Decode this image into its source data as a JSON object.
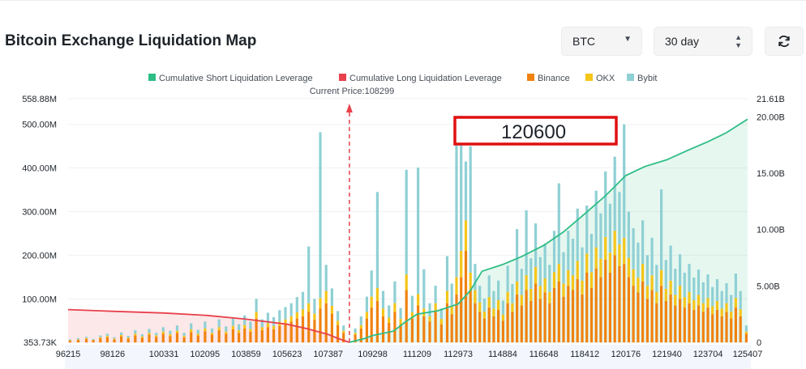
{
  "header": {
    "title": "Bitcoin Exchange Liquidation Map",
    "symbol_select": "BTC",
    "range_select": "30 day"
  },
  "colors": {
    "short_cumulative": "#2ebd85",
    "long_cumulative": "#e8414b",
    "binance": "#f0820f",
    "okx": "#f5c518",
    "bybit": "#8fd0d4",
    "highlight_box": "#e01010"
  },
  "annotation": {
    "label": "120600"
  },
  "chart_data": {
    "type": "bar",
    "legend": [
      {
        "name": "Cumulative Short Liquidation Leverage",
        "color": "#2ebd85"
      },
      {
        "name": "Cumulative Long Liquidation Leverage",
        "color": "#e8414b"
      },
      {
        "name": "Binance",
        "color": "#f0820f"
      },
      {
        "name": "OKX",
        "color": "#f5c518"
      },
      {
        "name": "Bybit",
        "color": "#8fd0d4"
      }
    ],
    "legend_position": "top-center",
    "current_price_label": "Current Price:108299",
    "current_price": 108299,
    "x_range": [
      96215,
      125407
    ],
    "x_tick_labels": [
      "96215",
      "98126",
      "100331",
      "102095",
      "103859",
      "105623",
      "107387",
      "109298",
      "111209",
      "112973",
      "114884",
      "116648",
      "118412",
      "120176",
      "121940",
      "123704",
      "125407"
    ],
    "y_left_tick_labels": [
      "353.73K",
      "100.00M",
      "200.00M",
      "300.00M",
      "400.00M",
      "500.00M",
      "558.88M"
    ],
    "y_left_range": [
      0.35373,
      558.88
    ],
    "y_left_unit": "M",
    "y_right_tick_labels": [
      "0",
      "5.00B",
      "10.00B",
      "15.00B",
      "20.00B",
      "21.61B"
    ],
    "y_right_range": [
      0,
      21.61
    ],
    "y_right_unit": "B",
    "bars": [
      [
        96300,
        4,
        1,
        2
      ],
      [
        96650,
        6,
        1,
        3
      ],
      [
        97000,
        8,
        2,
        3
      ],
      [
        97300,
        5,
        1,
        2
      ],
      [
        97600,
        10,
        2,
        4
      ],
      [
        97900,
        12,
        3,
        5
      ],
      [
        98200,
        7,
        2,
        3
      ],
      [
        98500,
        14,
        3,
        6
      ],
      [
        98800,
        9,
        2,
        4
      ],
      [
        99100,
        16,
        4,
        8
      ],
      [
        99400,
        11,
        3,
        5
      ],
      [
        99700,
        18,
        4,
        9
      ],
      [
        100000,
        13,
        3,
        6
      ],
      [
        100300,
        20,
        5,
        10
      ],
      [
        100600,
        15,
        4,
        8
      ],
      [
        100900,
        22,
        5,
        12
      ],
      [
        101200,
        12,
        3,
        7
      ],
      [
        101500,
        24,
        6,
        14
      ],
      [
        101800,
        16,
        4,
        9
      ],
      [
        102100,
        26,
        6,
        16
      ],
      [
        102400,
        18,
        4,
        10
      ],
      [
        102700,
        28,
        7,
        18
      ],
      [
        103000,
        20,
        5,
        12
      ],
      [
        103300,
        30,
        8,
        20
      ],
      [
        103550,
        22,
        6,
        14
      ],
      [
        103800,
        32,
        8,
        22
      ],
      [
        104050,
        25,
        6,
        17
      ],
      [
        104300,
        55,
        15,
        30
      ],
      [
        104550,
        28,
        7,
        18
      ],
      [
        104800,
        35,
        9,
        24
      ],
      [
        105050,
        30,
        8,
        20
      ],
      [
        105300,
        38,
        10,
        26
      ],
      [
        105550,
        42,
        11,
        28
      ],
      [
        105800,
        48,
        12,
        30
      ],
      [
        106050,
        55,
        14,
        35
      ],
      [
        106300,
        60,
        16,
        40
      ],
      [
        106550,
        70,
        20,
        130
      ],
      [
        106800,
        52,
        14,
        34
      ],
      [
        107050,
        78,
        24,
        380
      ],
      [
        107300,
        90,
        28,
        60
      ],
      [
        107550,
        66,
        18,
        40
      ],
      [
        107800,
        40,
        10,
        22
      ],
      [
        108050,
        22,
        5,
        12
      ],
      [
        108550,
        18,
        4,
        10
      ],
      [
        108800,
        32,
        8,
        20
      ],
      [
        109050,
        55,
        15,
        35
      ],
      [
        109250,
        80,
        25,
        60
      ],
      [
        109500,
        95,
        30,
        220
      ],
      [
        109750,
        60,
        18,
        40
      ],
      [
        110000,
        45,
        12,
        28
      ],
      [
        110250,
        70,
        20,
        50
      ],
      [
        110500,
        42,
        12,
        25
      ],
      [
        110750,
        120,
        36,
        240
      ],
      [
        111000,
        55,
        14,
        38
      ],
      [
        111250,
        85,
        26,
        290
      ],
      [
        111500,
        60,
        18,
        90
      ],
      [
        111750,
        48,
        12,
        30
      ],
      [
        112000,
        70,
        20,
        40
      ],
      [
        112250,
        42,
        12,
        24
      ],
      [
        112500,
        90,
        28,
        80
      ],
      [
        112700,
        65,
        20,
        50
      ],
      [
        112900,
        110,
        40,
        320
      ],
      [
        113100,
        150,
        60,
        310
      ],
      [
        113300,
        210,
        70,
        135
      ],
      [
        113500,
        120,
        40,
        290
      ],
      [
        113700,
        90,
        30,
        60
      ],
      [
        113900,
        70,
        22,
        38
      ],
      [
        114100,
        55,
        16,
        30
      ],
      [
        114300,
        80,
        24,
        50
      ],
      [
        114500,
        60,
        18,
        40
      ],
      [
        114700,
        75,
        22,
        45
      ],
      [
        114900,
        50,
        14,
        32
      ],
      [
        115100,
        90,
        26,
        60
      ],
      [
        115300,
        70,
        20,
        44
      ],
      [
        115500,
        110,
        30,
        120
      ],
      [
        115700,
        85,
        24,
        60
      ],
      [
        115900,
        120,
        34,
        149
      ],
      [
        116100,
        95,
        28,
        70
      ],
      [
        116300,
        135,
        38,
        100
      ],
      [
        116500,
        100,
        30,
        66
      ],
      [
        116700,
        115,
        32,
        80
      ],
      [
        116900,
        90,
        26,
        62
      ],
      [
        117100,
        125,
        36,
        95
      ],
      [
        117300,
        140,
        40,
        185
      ],
      [
        117500,
        105,
        30,
        72
      ],
      [
        117700,
        130,
        36,
        90
      ],
      [
        117900,
        120,
        34,
        84
      ],
      [
        118100,
        145,
        42,
        120
      ],
      [
        118300,
        110,
        32,
        76
      ],
      [
        118500,
        160,
        44,
        110
      ],
      [
        118700,
        125,
        36,
        88
      ],
      [
        118900,
        170,
        48,
        130
      ],
      [
        119100,
        150,
        42,
        104
      ],
      [
        119300,
        190,
        52,
        150
      ],
      [
        119500,
        160,
        46,
        112
      ],
      [
        119700,
        200,
        56,
        170
      ],
      [
        119900,
        175,
        50,
        120
      ],
      [
        120100,
        180,
        60,
        260
      ],
      [
        120300,
        150,
        44,
        106
      ],
      [
        120500,
        130,
        38,
        94
      ],
      [
        120700,
        115,
        34,
        80
      ],
      [
        120900,
        140,
        40,
        100
      ],
      [
        121100,
        100,
        30,
        70
      ],
      [
        121300,
        120,
        34,
        86
      ],
      [
        121500,
        90,
        26,
        62
      ],
      [
        121700,
        130,
        36,
        185
      ],
      [
        121900,
        95,
        28,
        66
      ],
      [
        122100,
        110,
        32,
        80
      ],
      [
        122300,
        85,
        24,
        60
      ],
      [
        122500,
        100,
        30,
        72
      ],
      [
        122700,
        80,
        24,
        56
      ],
      [
        122900,
        90,
        26,
        64
      ],
      [
        123100,
        75,
        22,
        52
      ],
      [
        123300,
        85,
        24,
        58
      ],
      [
        123500,
        70,
        20,
        48
      ],
      [
        123700,
        80,
        22,
        54
      ],
      [
        123900,
        65,
        18,
        44
      ],
      [
        124100,
        75,
        20,
        50
      ],
      [
        124300,
        60,
        18,
        40
      ],
      [
        124500,
        70,
        20,
        46
      ],
      [
        124700,
        55,
        16,
        38
      ],
      [
        124900,
        80,
        22,
        56
      ],
      [
        125100,
        60,
        16,
        42
      ],
      [
        125350,
        20,
        5,
        14
      ]
    ],
    "bar_fields": [
      "price",
      "binance_M",
      "okx_M",
      "bybit_M"
    ],
    "cumulative_long_B": [
      [
        96215,
        2.9
      ],
      [
        98126,
        2.75
      ],
      [
        100331,
        2.6
      ],
      [
        102095,
        2.4
      ],
      [
        103859,
        2.05
      ],
      [
        105623,
        1.6
      ],
      [
        106500,
        1.2
      ],
      [
        107387,
        0.7
      ],
      [
        107800,
        0.35
      ],
      [
        108299,
        0
      ]
    ],
    "cumulative_short_B": [
      [
        108299,
        0
      ],
      [
        108900,
        0.3
      ],
      [
        109298,
        0.6
      ],
      [
        110200,
        1.0
      ],
      [
        110700,
        1.8
      ],
      [
        111209,
        2.5
      ],
      [
        112100,
        2.8
      ],
      [
        112973,
        3.4
      ],
      [
        113500,
        4.6
      ],
      [
        114000,
        6.3
      ],
      [
        114884,
        6.9
      ],
      [
        115700,
        7.6
      ],
      [
        116648,
        8.6
      ],
      [
        117500,
        9.8
      ],
      [
        118412,
        11.4
      ],
      [
        119300,
        13.0
      ],
      [
        120176,
        14.8
      ],
      [
        121000,
        15.6
      ],
      [
        121940,
        16.2
      ],
      [
        122800,
        17.0
      ],
      [
        123704,
        17.8
      ],
      [
        124500,
        18.6
      ],
      [
        125407,
        19.8
      ]
    ]
  }
}
